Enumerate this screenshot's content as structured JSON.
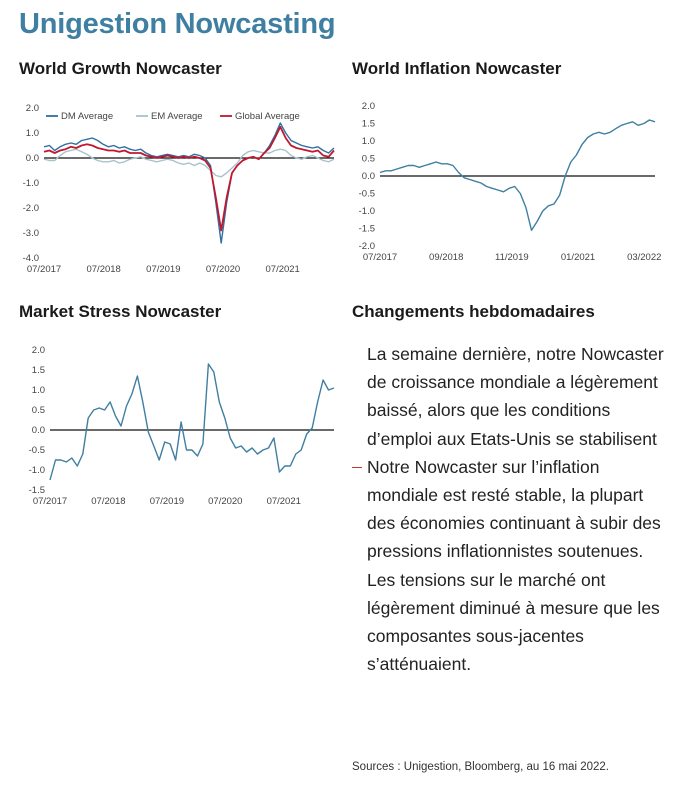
{
  "title": "Unigestion Nowcasting",
  "panels": {
    "growth_title": "World Growth Nowcaster",
    "inflation_title": "World Inflation Nowcaster",
    "stress_title": "Market Stress Nowcaster",
    "weekly_title": "Changements hebdomadaires"
  },
  "weekly_changes": [
    "La semaine dernière, notre Nowcaster de croissance mondiale a légèrement baissé, alors que les conditions d’emploi aux Etats-Unis se stabilisent",
    "Notre Nowcaster sur l’inflation mondiale est resté stable, la plupart des économies continuant à subir des pressions inflationnistes soutenues.",
    "Les tensions sur le marché ont légèrement diminué à mesure que les composantes sous-jacentes s’atténuaient."
  ],
  "sources": "Sources : Unigestion, Bloomberg, au 16 mai 2022.",
  "chart_data": [
    {
      "id": "growth",
      "type": "line",
      "title": "World Growth Nowcaster",
      "x_start": 2017.5,
      "x_end": 2022.36,
      "xticks": [
        "07/2017",
        "07/2018",
        "07/2019",
        "07/2020",
        "07/2021"
      ],
      "xtick_values": [
        2017.5,
        2018.5,
        2019.5,
        2020.5,
        2021.5
      ],
      "yticks": [
        "2.0",
        "1.0",
        "0.0",
        "-1.0",
        "-2.0",
        "-3.0",
        "-4.0"
      ],
      "ylim": [
        -4,
        2
      ],
      "legend_placement": "top",
      "series": [
        {
          "name": "DM Average",
          "color": "#2f6fa3",
          "values": [
            0.45,
            0.5,
            0.3,
            0.45,
            0.55,
            0.6,
            0.55,
            0.7,
            0.75,
            0.8,
            0.7,
            0.55,
            0.45,
            0.5,
            0.4,
            0.45,
            0.35,
            0.3,
            0.35,
            0.2,
            0.1,
            0.05,
            0.1,
            0.15,
            0.1,
            0.05,
            0.1,
            0.05,
            0.15,
            0.1,
            0.0,
            -0.3,
            -1.8,
            -3.4,
            -1.8,
            -0.6,
            -0.3,
            -0.1,
            0.0,
            0.05,
            -0.05,
            0.2,
            0.5,
            0.9,
            1.4,
            1.0,
            0.7,
            0.6,
            0.5,
            0.45,
            0.4,
            0.45,
            0.3,
            0.2,
            0.4
          ]
        },
        {
          "name": "EM Average",
          "color": "#a8c2cc",
          "values": [
            -0.05,
            -0.1,
            -0.1,
            0.1,
            0.25,
            0.3,
            0.35,
            0.25,
            0.15,
            0.0,
            -0.1,
            -0.15,
            -0.15,
            -0.1,
            -0.2,
            -0.15,
            -0.05,
            0.0,
            0.05,
            -0.05,
            -0.1,
            -0.15,
            -0.1,
            -0.05,
            -0.1,
            -0.2,
            -0.25,
            -0.2,
            -0.3,
            -0.2,
            -0.3,
            -0.5,
            -0.7,
            -0.75,
            -0.6,
            -0.4,
            -0.2,
            0.1,
            0.25,
            0.3,
            0.25,
            0.2,
            0.2,
            0.3,
            0.35,
            0.3,
            0.1,
            0.0,
            -0.05,
            0.05,
            0.1,
            0.0,
            -0.1,
            -0.15,
            -0.05
          ]
        },
        {
          "name": "Global Average",
          "color": "#c0182e",
          "values": [
            0.25,
            0.3,
            0.2,
            0.3,
            0.35,
            0.45,
            0.4,
            0.5,
            0.55,
            0.5,
            0.4,
            0.35,
            0.3,
            0.3,
            0.25,
            0.3,
            0.2,
            0.2,
            0.2,
            0.1,
            0.05,
            0.0,
            0.05,
            0.1,
            0.05,
            0.0,
            0.05,
            0.0,
            0.05,
            0.0,
            -0.1,
            -0.4,
            -1.6,
            -2.9,
            -1.6,
            -0.6,
            -0.3,
            -0.1,
            0.0,
            0.05,
            -0.05,
            0.2,
            0.4,
            0.8,
            1.25,
            0.8,
            0.5,
            0.4,
            0.35,
            0.3,
            0.25,
            0.3,
            0.1,
            0.05,
            0.3
          ]
        }
      ]
    },
    {
      "id": "inflation",
      "type": "line",
      "title": "World Inflation Nowcaster",
      "x_start": 2017.5,
      "x_end": 2022.36,
      "xticks": [
        "07/2017",
        "09/2018",
        "11/2019",
        "01/2021",
        "03/2022"
      ],
      "xtick_values": [
        2017.5,
        2018.67,
        2019.83,
        2021.0,
        2022.17
      ],
      "yticks": [
        "2.0",
        "1.5",
        "1.0",
        "0.5",
        "0.0",
        "-0.5",
        "-1.0",
        "-1.5",
        "-2.0"
      ],
      "ylim": [
        -2,
        2
      ],
      "series": [
        {
          "name": "",
          "color": "#3f7fa1",
          "values": [
            0.1,
            0.15,
            0.15,
            0.2,
            0.25,
            0.3,
            0.3,
            0.25,
            0.3,
            0.35,
            0.4,
            0.35,
            0.35,
            0.3,
            0.1,
            -0.05,
            -0.1,
            -0.15,
            -0.2,
            -0.3,
            -0.35,
            -0.4,
            -0.45,
            -0.35,
            -0.3,
            -0.5,
            -0.9,
            -1.55,
            -1.3,
            -1.0,
            -0.85,
            -0.8,
            -0.55,
            0.0,
            0.4,
            0.6,
            0.9,
            1.1,
            1.2,
            1.25,
            1.2,
            1.25,
            1.35,
            1.45,
            1.5,
            1.55,
            1.45,
            1.5,
            1.6,
            1.55
          ]
        }
      ]
    },
    {
      "id": "stress",
      "type": "line",
      "title": "Market Stress Nowcaster",
      "x_start": 2017.5,
      "x_end": 2022.36,
      "xticks": [
        "07/2017",
        "07/2018",
        "07/2019",
        "07/2020",
        "07/2021"
      ],
      "xtick_values": [
        2017.5,
        2018.5,
        2019.5,
        2020.5,
        2021.5
      ],
      "yticks": [
        "2.0",
        "1.5",
        "1.0",
        "0.5",
        "0.0",
        "-0.5",
        "-1.0",
        "-1.5"
      ],
      "ylim": [
        -1.5,
        2
      ],
      "series": [
        {
          "name": "",
          "color": "#3f7fa1",
          "values": [
            -1.25,
            -0.75,
            -0.75,
            -0.8,
            -0.7,
            -0.9,
            -0.6,
            0.3,
            0.5,
            0.55,
            0.5,
            0.7,
            0.35,
            0.1,
            0.6,
            0.9,
            1.35,
            0.7,
            -0.05,
            -0.4,
            -0.75,
            -0.3,
            -0.35,
            -0.75,
            0.2,
            -0.5,
            -0.5,
            -0.65,
            -0.35,
            1.65,
            1.45,
            0.7,
            0.3,
            -0.2,
            -0.45,
            -0.4,
            -0.55,
            -0.45,
            -0.6,
            -0.5,
            -0.45,
            -0.2,
            -1.05,
            -0.9,
            -0.9,
            -0.6,
            -0.5,
            -0.1,
            0.05,
            0.7,
            1.25,
            1.0,
            1.05
          ]
        }
      ]
    }
  ]
}
